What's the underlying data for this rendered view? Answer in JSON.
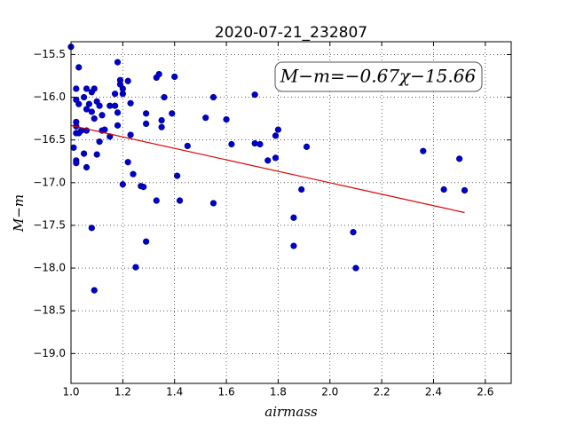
{
  "chart_data": {
    "type": "scatter",
    "title": "2020-07-21_232807",
    "x_label": "airmass",
    "y_label": "M−m",
    "annotation": "M−m=−0.67χ−15.66",
    "xlim": [
      1.0,
      2.7
    ],
    "ylim": [
      -19.35,
      -15.35
    ],
    "xticks": [
      {
        "value": 1.0,
        "label": "1.0"
      },
      {
        "value": 1.2,
        "label": "1.2"
      },
      {
        "value": 1.4,
        "label": "1.4"
      },
      {
        "value": 1.6,
        "label": "1.6"
      },
      {
        "value": 1.8,
        "label": "1.8"
      },
      {
        "value": 2.0,
        "label": "2.0"
      },
      {
        "value": 2.2,
        "label": "2.2"
      },
      {
        "value": 2.4,
        "label": "2.4"
      },
      {
        "value": 2.6,
        "label": "2.6"
      }
    ],
    "yticks": [
      {
        "value": -15.5,
        "label": "−15.5"
      },
      {
        "value": -16.0,
        "label": "−16.0"
      },
      {
        "value": -16.5,
        "label": "−16.5"
      },
      {
        "value": -17.0,
        "label": "−17.0"
      },
      {
        "value": -17.5,
        "label": "−17.5"
      },
      {
        "value": -18.0,
        "label": "−18.0"
      },
      {
        "value": -18.5,
        "label": "−18.5"
      },
      {
        "value": -19.0,
        "label": "−19.0"
      }
    ],
    "grid": true,
    "series": [
      {
        "color": "#0000cc",
        "x": [
          1.0,
          1.01,
          1.02,
          1.02,
          1.02,
          1.02,
          1.02,
          1.02,
          1.02,
          1.03,
          1.03,
          1.03,
          1.04,
          1.05,
          1.05,
          1.06,
          1.06,
          1.06,
          1.06,
          1.07,
          1.08,
          1.08,
          1.08,
          1.09,
          1.09,
          1.09,
          1.1,
          1.1,
          1.11,
          1.11,
          1.12,
          1.12,
          1.13,
          1.15,
          1.15,
          1.17,
          1.17,
          1.18,
          1.18,
          1.18,
          1.19,
          1.19,
          1.2,
          1.2,
          1.2,
          1.22,
          1.22,
          1.23,
          1.23,
          1.24,
          1.25,
          1.27,
          1.28,
          1.29,
          1.29,
          1.29,
          1.33,
          1.33,
          1.34,
          1.35,
          1.35,
          1.36,
          1.39,
          1.4,
          1.41,
          1.42,
          1.45,
          1.52,
          1.55,
          1.55,
          1.6,
          1.62,
          1.71,
          1.71,
          1.73,
          1.76,
          1.79,
          1.79,
          1.8,
          1.89,
          1.86,
          1.86,
          1.91,
          2.09,
          2.1,
          2.36,
          2.44,
          2.5,
          2.52
        ],
        "values": [
          -15.41,
          -16.59,
          -15.9,
          -16.03,
          -16.29,
          -16.34,
          -16.42,
          -16.74,
          -16.77,
          -16.08,
          -15.65,
          -16.42,
          -16.39,
          -16.0,
          -16.66,
          -16.39,
          -15.9,
          -16.14,
          -16.82,
          -16.08,
          -16.17,
          -15.94,
          -17.53,
          -16.25,
          -18.26,
          -15.9,
          -16.05,
          -16.67,
          -16.52,
          -16.1,
          -16.21,
          -16.39,
          -16.38,
          -16.46,
          -16.1,
          -15.96,
          -16.1,
          -16.33,
          -15.59,
          -16.18,
          -15.8,
          -15.85,
          -15.96,
          -15.9,
          -17.02,
          -16.76,
          -15.81,
          -16.44,
          -16.07,
          -16.9,
          -17.99,
          -17.04,
          -17.05,
          -17.69,
          -16.19,
          -16.31,
          -17.21,
          -15.77,
          -15.73,
          -16.35,
          -16.27,
          -16.0,
          -16.19,
          -15.76,
          -16.92,
          -17.21,
          -16.57,
          -16.24,
          -16.0,
          -17.24,
          -16.26,
          -16.55,
          -15.97,
          -16.54,
          -16.55,
          -16.74,
          -16.71,
          -16.45,
          -16.38,
          -17.08,
          -17.41,
          -17.74,
          -16.58,
          -17.58,
          -18.0,
          -16.63,
          -17.08,
          -16.72,
          -17.09
        ]
      }
    ],
    "fit": {
      "color": "#dd0000",
      "x": [
        1.0,
        2.52
      ],
      "values": [
        -16.33,
        -17.35
      ]
    }
  }
}
